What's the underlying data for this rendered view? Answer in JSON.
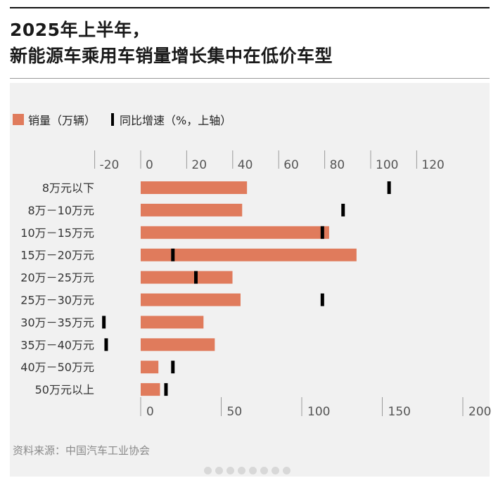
{
  "title": {
    "line1": "2025年上半年，",
    "line2": "新能源车乘用车销量增长集中在低价车型"
  },
  "legend": {
    "bar_label": "销量（万辆）",
    "marker_label": "同比增速（%，上轴）"
  },
  "source": "资料来源：中国汽车工业协会",
  "colors": {
    "bar": "#e07b5c",
    "marker": "#000000",
    "panel": "#f1f1f1"
  },
  "chart_data": {
    "type": "bar",
    "orientation": "horizontal",
    "categories": [
      "8万元以下",
      "8万－10万元",
      "10万－15万元",
      "15万－20万元",
      "20万－25万元",
      "25万－30万元",
      "30万－35万元",
      "35万－40万元",
      "40万－50万元",
      "50万元以上"
    ],
    "series": [
      {
        "name": "销量（万辆）",
        "axis": "bottom",
        "values": [
          66,
          63,
          117,
          134,
          57,
          62,
          39,
          46,
          11,
          12
        ]
      },
      {
        "name": "同比增速（%，上轴）",
        "axis": "top",
        "marker": "tick",
        "values": [
          108,
          88,
          79,
          14,
          24,
          79,
          -16,
          -15,
          14,
          11
        ]
      }
    ],
    "bottom_axis": {
      "range": [
        0,
        200
      ],
      "ticks": [
        "0",
        "50",
        "100",
        "150",
        "200"
      ]
    },
    "top_axis": {
      "range": [
        -20,
        120
      ],
      "ticks": [
        "-20",
        "0",
        "20",
        "40",
        "60",
        "80",
        "100",
        "120"
      ]
    },
    "grid": false,
    "legend_position": "top-left"
  }
}
